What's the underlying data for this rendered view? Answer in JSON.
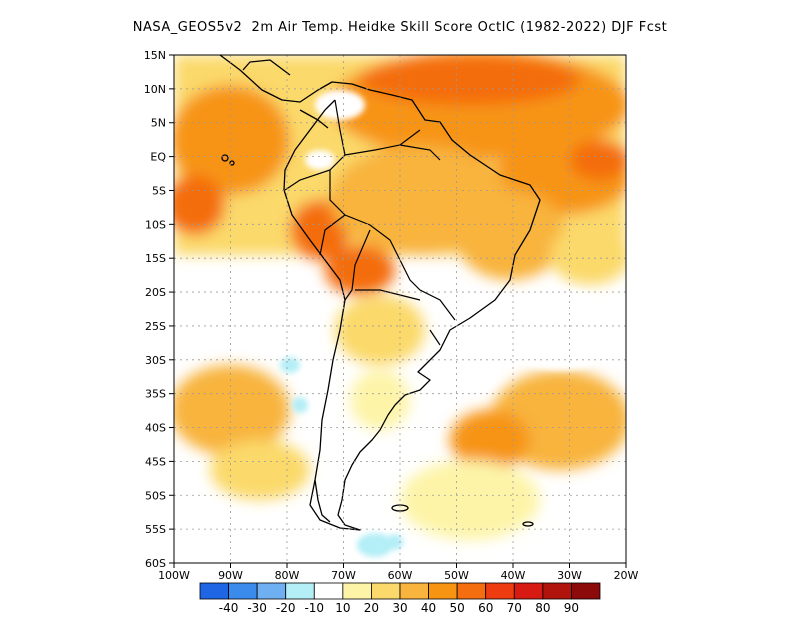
{
  "title": "NASA_GEOS5v2  2m Air Temp. Heidke Skill Score OctIC (1982-2022) DJF Fcst",
  "lat_ticks": [
    "15N",
    "10N",
    "5N",
    "EQ",
    "5S",
    "10S",
    "15S",
    "20S",
    "25S",
    "30S",
    "35S",
    "40S",
    "45S",
    "50S",
    "55S",
    "60S"
  ],
  "lon_ticks": [
    "100W",
    "90W",
    "80W",
    "70W",
    "60W",
    "50W",
    "40W",
    "30W",
    "20W"
  ],
  "colorbar": {
    "labels": [
      "-40",
      "-30",
      "-20",
      "-10",
      "10",
      "20",
      "30",
      "40",
      "50",
      "60",
      "70",
      "80",
      "90"
    ],
    "colors": [
      "#1f66e5",
      "#3a8bec",
      "#6fb0f2",
      "#b4eef7",
      "#ffffff",
      "#fdf4a8",
      "#fbd96b",
      "#f8b43c",
      "#f79412",
      "#f46d0f",
      "#ee3c10",
      "#d81b12",
      "#b0140c",
      "#8c0a0a"
    ]
  },
  "colors": {
    "land_outline": "#000000",
    "grid": "#999999"
  }
}
